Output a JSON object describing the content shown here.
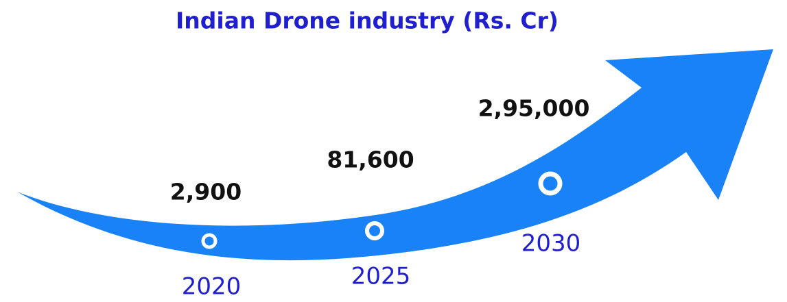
{
  "title": "Indian Drone industry (Rs. Cr)",
  "milestones": [
    {
      "year": "2020",
      "value": "2,900"
    },
    {
      "year": "2025",
      "value": "81,600"
    },
    {
      "year": "2030",
      "value": "2,95,000"
    }
  ]
}
